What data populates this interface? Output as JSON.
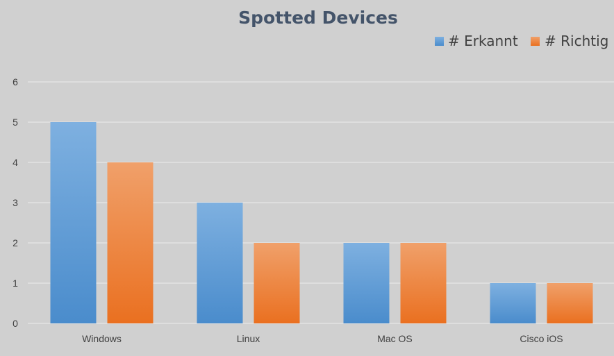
{
  "chart_data": {
    "type": "bar",
    "title": "Spotted Devices",
    "xlabel": "",
    "ylabel": "",
    "categories": [
      "Windows",
      "Linux",
      "Mac OS",
      "Cisco iOS"
    ],
    "series": [
      {
        "name": "# Erkannt",
        "values": [
          5,
          3,
          2,
          1
        ],
        "color": "#5b9bd5"
      },
      {
        "name": "# Richtig",
        "values": [
          4,
          2,
          2,
          1
        ],
        "color": "#ed7d31"
      }
    ],
    "ylim": [
      0,
      6
    ],
    "yticks": [
      "0",
      "1",
      "2",
      "3",
      "4",
      "5",
      "6"
    ],
    "grid": true,
    "legend": "top-right"
  }
}
